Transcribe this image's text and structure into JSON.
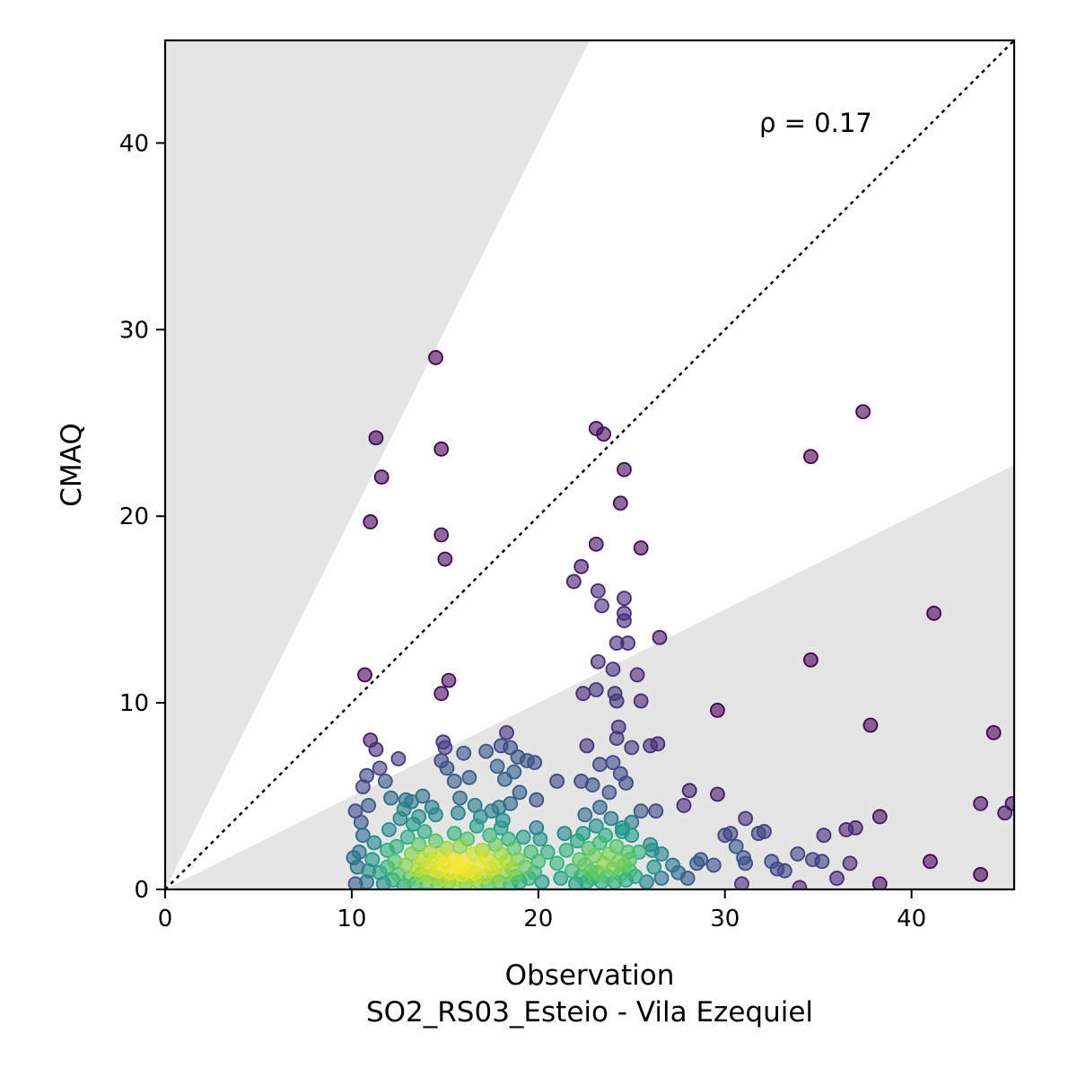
{
  "chart_data": {
    "type": "scatter",
    "xlabel": "Observation",
    "xlabel_line2": "SO2_RS03_Esteio - Vila Ezequiel",
    "ylabel": "CMAQ",
    "annotation": "ρ = 0.17",
    "xlim": [
      0,
      45.5
    ],
    "ylim": [
      0,
      45.5
    ],
    "x_ticks": [
      0,
      10,
      20,
      30,
      40
    ],
    "y_ticks": [
      0,
      10,
      20,
      30,
      40
    ],
    "x_tick_labels": [
      "0",
      "10",
      "20",
      "30",
      "40"
    ],
    "y_tick_labels": [
      "0",
      "10",
      "20",
      "30",
      "40"
    ],
    "identity_line": true,
    "shaded_band_slopes": [
      0.5,
      2
    ],
    "colormap": "viridis (point density)",
    "colors": {
      "shade": "#e5e5e5",
      "low_density": "#440154",
      "high_density": "#fde725"
    },
    "points": [
      [
        14.5,
        28.5
      ],
      [
        11.3,
        24.2
      ],
      [
        11.6,
        22.1
      ],
      [
        11.0,
        19.7
      ],
      [
        14.8,
        23.6
      ],
      [
        14.8,
        19.0
      ],
      [
        15.0,
        17.7
      ],
      [
        10.7,
        11.5
      ],
      [
        15.2,
        11.2
      ],
      [
        14.8,
        10.5
      ],
      [
        11.0,
        8.0
      ],
      [
        11.3,
        7.5
      ],
      [
        11.5,
        6.5
      ],
      [
        10.8,
        6.1
      ],
      [
        10.6,
        5.5
      ],
      [
        10.9,
        4.5
      ],
      [
        11.8,
        5.8
      ],
      [
        12.5,
        7.0
      ],
      [
        12.1,
        4.9
      ],
      [
        12.8,
        4.3
      ],
      [
        13.2,
        4.7
      ],
      [
        13.8,
        5.0
      ],
      [
        14.3,
        4.4
      ],
      [
        14.9,
        7.9
      ],
      [
        15.0,
        7.6
      ],
      [
        14.8,
        6.9
      ],
      [
        15.1,
        6.5
      ],
      [
        15.5,
        5.8
      ],
      [
        16.0,
        7.3
      ],
      [
        16.3,
        6.0
      ],
      [
        15.8,
        4.9
      ],
      [
        16.6,
        4.5
      ],
      [
        17.2,
        7.4
      ],
      [
        17.8,
        6.6
      ],
      [
        18.0,
        7.7
      ],
      [
        18.3,
        8.4
      ],
      [
        18.5,
        7.6
      ],
      [
        18.2,
        5.9
      ],
      [
        18.7,
        6.3
      ],
      [
        19.4,
        6.9
      ],
      [
        19.0,
        5.2
      ],
      [
        18.5,
        4.6
      ],
      [
        19.9,
        4.8
      ],
      [
        17.5,
        4.2
      ],
      [
        18.0,
        3.3
      ],
      [
        19.8,
        6.8
      ],
      [
        18.9,
        7.1
      ],
      [
        21.0,
        5.8
      ],
      [
        23.1,
        24.7
      ],
      [
        23.5,
        24.4
      ],
      [
        24.6,
        22.5
      ],
      [
        24.4,
        20.7
      ],
      [
        23.1,
        18.5
      ],
      [
        25.5,
        18.3
      ],
      [
        22.3,
        17.3
      ],
      [
        21.9,
        16.5
      ],
      [
        23.2,
        16.0
      ],
      [
        23.4,
        15.2
      ],
      [
        24.6,
        15.6
      ],
      [
        24.6,
        14.8
      ],
      [
        24.6,
        14.4
      ],
      [
        24.2,
        13.2
      ],
      [
        24.8,
        13.2
      ],
      [
        26.5,
        13.5
      ],
      [
        23.2,
        12.2
      ],
      [
        24.0,
        11.8
      ],
      [
        25.3,
        11.5
      ],
      [
        22.4,
        10.5
      ],
      [
        23.1,
        10.7
      ],
      [
        24.1,
        10.5
      ],
      [
        24.2,
        10.1
      ],
      [
        25.5,
        10.1
      ],
      [
        24.3,
        8.7
      ],
      [
        24.2,
        8.1
      ],
      [
        22.6,
        7.7
      ],
      [
        23.3,
        6.7
      ],
      [
        24.0,
        6.8
      ],
      [
        24.4,
        6.2
      ],
      [
        25.0,
        7.6
      ],
      [
        26.0,
        7.7
      ],
      [
        26.4,
        7.8
      ],
      [
        22.3,
        5.8
      ],
      [
        22.9,
        5.6
      ],
      [
        24.7,
        5.7
      ],
      [
        23.8,
        5.2
      ],
      [
        23.3,
        4.4
      ],
      [
        25.5,
        4.2
      ],
      [
        26.3,
        4.2
      ],
      [
        22.5,
        4.0
      ],
      [
        25.0,
        2.9
      ],
      [
        24.5,
        3.3
      ],
      [
        26.0,
        2.4
      ],
      [
        26.6,
        1.9
      ],
      [
        27.2,
        1.3
      ],
      [
        27.8,
        4.5
      ],
      [
        28.1,
        5.3
      ],
      [
        29.6,
        9.6
      ],
      [
        29.6,
        5.1
      ],
      [
        30.0,
        2.9
      ],
      [
        30.3,
        3.0
      ],
      [
        30.6,
        2.3
      ],
      [
        31.1,
        3.8
      ],
      [
        31.0,
        1.7
      ],
      [
        31.1,
        1.4
      ],
      [
        31.8,
        3.0
      ],
      [
        32.1,
        3.1
      ],
      [
        32.5,
        1.5
      ],
      [
        32.8,
        1.1
      ],
      [
        33.2,
        1.0
      ],
      [
        33.9,
        1.9
      ],
      [
        34.0,
        0.1
      ],
      [
        34.7,
        1.6
      ],
      [
        35.2,
        1.5
      ],
      [
        35.3,
        2.9
      ],
      [
        36.0,
        0.6
      ],
      [
        36.5,
        3.2
      ],
      [
        37.0,
        3.3
      ],
      [
        36.7,
        1.4
      ],
      [
        37.8,
        8.8
      ],
      [
        38.3,
        3.9
      ],
      [
        38.3,
        0.3
      ],
      [
        34.6,
        12.3
      ],
      [
        34.6,
        23.2
      ],
      [
        37.4,
        25.6
      ],
      [
        41.2,
        14.8
      ],
      [
        41.0,
        1.5
      ],
      [
        43.7,
        4.6
      ],
      [
        43.7,
        0.8
      ],
      [
        44.4,
        8.4
      ],
      [
        45.0,
        4.1
      ],
      [
        45.4,
        4.6
      ],
      [
        28.0,
        0.6
      ],
      [
        28.7,
        1.6
      ],
      [
        28.5,
        1.4
      ],
      [
        29.4,
        1.3
      ],
      [
        30.9,
        0.3
      ],
      [
        27.5,
        0.9
      ],
      [
        26.6,
        0.6
      ],
      [
        26.2,
        1.2
      ],
      [
        25.8,
        0.4
      ],
      [
        25.2,
        0.7
      ],
      [
        24.9,
        1.6
      ],
      [
        26.1,
        2.1
      ],
      [
        25.4,
        2.0
      ],
      [
        10.2,
        0.3
      ],
      [
        10.3,
        1.2
      ],
      [
        10.4,
        2.0
      ],
      [
        10.6,
        2.9
      ],
      [
        10.5,
        3.6
      ],
      [
        10.9,
        1.0
      ],
      [
        10.8,
        0.4
      ],
      [
        11.1,
        1.6
      ],
      [
        11.2,
        2.5
      ],
      [
        11.5,
        0.9
      ],
      [
        11.7,
        0.3
      ],
      [
        11.9,
        2.1
      ],
      [
        11.9,
        1.2
      ],
      [
        12.0,
        3.2
      ],
      [
        12.2,
        0.5
      ],
      [
        12.3,
        1.5
      ],
      [
        12.4,
        2.3
      ],
      [
        12.5,
        0.8
      ],
      [
        12.6,
        3.8
      ],
      [
        12.8,
        0.2
      ],
      [
        12.9,
        1.3
      ],
      [
        13.0,
        2.8
      ],
      [
        13.1,
        0.6
      ],
      [
        13.2,
        1.9
      ],
      [
        13.3,
        3.5
      ],
      [
        13.4,
        0.3
      ],
      [
        13.5,
        1.1
      ],
      [
        13.6,
        2.4
      ],
      [
        13.7,
        0.8
      ],
      [
        13.8,
        1.6
      ],
      [
        13.9,
        3.1
      ],
      [
        14.0,
        0.4
      ],
      [
        14.1,
        1.2
      ],
      [
        14.2,
        2.0
      ],
      [
        14.3,
        0.7
      ],
      [
        14.4,
        1.5
      ],
      [
        14.5,
        2.6
      ],
      [
        14.6,
        0.3
      ],
      [
        14.7,
        1.0
      ],
      [
        14.8,
        1.8
      ],
      [
        14.9,
        0.6
      ],
      [
        15.0,
        1.3
      ],
      [
        15.1,
        2.2
      ],
      [
        15.2,
        0.4
      ],
      [
        15.3,
        0.9
      ],
      [
        15.4,
        1.6
      ],
      [
        15.5,
        3.0
      ],
      [
        15.6,
        0.5
      ],
      [
        15.7,
        1.2
      ],
      [
        15.8,
        2.3
      ],
      [
        15.9,
        0.8
      ],
      [
        16.0,
        1.5
      ],
      [
        16.1,
        0.3
      ],
      [
        16.2,
        2.7
      ],
      [
        16.3,
        1.0
      ],
      [
        16.4,
        0.6
      ],
      [
        16.5,
        1.9
      ],
      [
        16.6,
        0.9
      ],
      [
        16.7,
        3.4
      ],
      [
        16.8,
        0.4
      ],
      [
        16.9,
        1.4
      ],
      [
        17.0,
        2.1
      ],
      [
        17.1,
        0.7
      ],
      [
        17.2,
        1.7
      ],
      [
        17.3,
        0.2
      ],
      [
        17.4,
        2.9
      ],
      [
        17.5,
        1.1
      ],
      [
        17.6,
        0.6
      ],
      [
        17.7,
        2.4
      ],
      [
        17.8,
        1.3
      ],
      [
        17.9,
        0.4
      ],
      [
        18.0,
        1.9
      ],
      [
        18.1,
        3.7
      ],
      [
        18.2,
        0.8
      ],
      [
        18.3,
        1.5
      ],
      [
        18.4,
        2.7
      ],
      [
        18.5,
        0.3
      ],
      [
        18.6,
        1.1
      ],
      [
        18.7,
        2.2
      ],
      [
        18.8,
        0.7
      ],
      [
        18.9,
        1.6
      ],
      [
        19.0,
        0.4
      ],
      [
        19.2,
        2.8
      ],
      [
        19.3,
        1.2
      ],
      [
        19.5,
        0.6
      ],
      [
        19.6,
        2.0
      ],
      [
        19.8,
        0.9
      ],
      [
        20.0,
        1.5
      ],
      [
        20.2,
        0.4
      ],
      [
        20.5,
        2.0
      ],
      [
        21.0,
        1.4
      ],
      [
        21.2,
        0.6
      ],
      [
        21.5,
        2.1
      ],
      [
        21.8,
        1.0
      ],
      [
        22.0,
        0.3
      ],
      [
        22.1,
        2.6
      ],
      [
        22.2,
        1.6
      ],
      [
        22.3,
        0.7
      ],
      [
        22.4,
        3.0
      ],
      [
        22.5,
        1.3
      ],
      [
        22.6,
        0.4
      ],
      [
        22.7,
        2.2
      ],
      [
        22.8,
        1.0
      ],
      [
        22.9,
        0.6
      ],
      [
        23.0,
        1.8
      ],
      [
        23.1,
        3.4
      ],
      [
        23.2,
        0.9
      ],
      [
        23.3,
        2.5
      ],
      [
        23.4,
        0.4
      ],
      [
        23.5,
        1.4
      ],
      [
        23.6,
        2.9
      ],
      [
        23.7,
        0.7
      ],
      [
        23.8,
        1.9
      ],
      [
        23.9,
        3.8
      ],
      [
        24.0,
        1.1
      ],
      [
        24.1,
        0.4
      ],
      [
        24.2,
        2.3
      ],
      [
        24.3,
        1.5
      ],
      [
        24.4,
        0.8
      ],
      [
        24.5,
        3.1
      ],
      [
        24.6,
        1.3
      ],
      [
        24.7,
        0.5
      ],
      [
        24.8,
        2.0
      ],
      [
        24.9,
        1.0
      ],
      [
        25.0,
        3.6
      ],
      [
        10.1,
        1.7
      ],
      [
        10.2,
        4.2
      ],
      [
        19.9,
        3.3
      ],
      [
        20.1,
        2.7
      ],
      [
        21.4,
        3.0
      ],
      [
        14.5,
        4.0
      ],
      [
        15.7,
        4.1
      ],
      [
        17.9,
        4.4
      ],
      [
        13.6,
        3.9
      ],
      [
        16.9,
        3.9
      ],
      [
        12.9,
        4.8
      ]
    ]
  }
}
